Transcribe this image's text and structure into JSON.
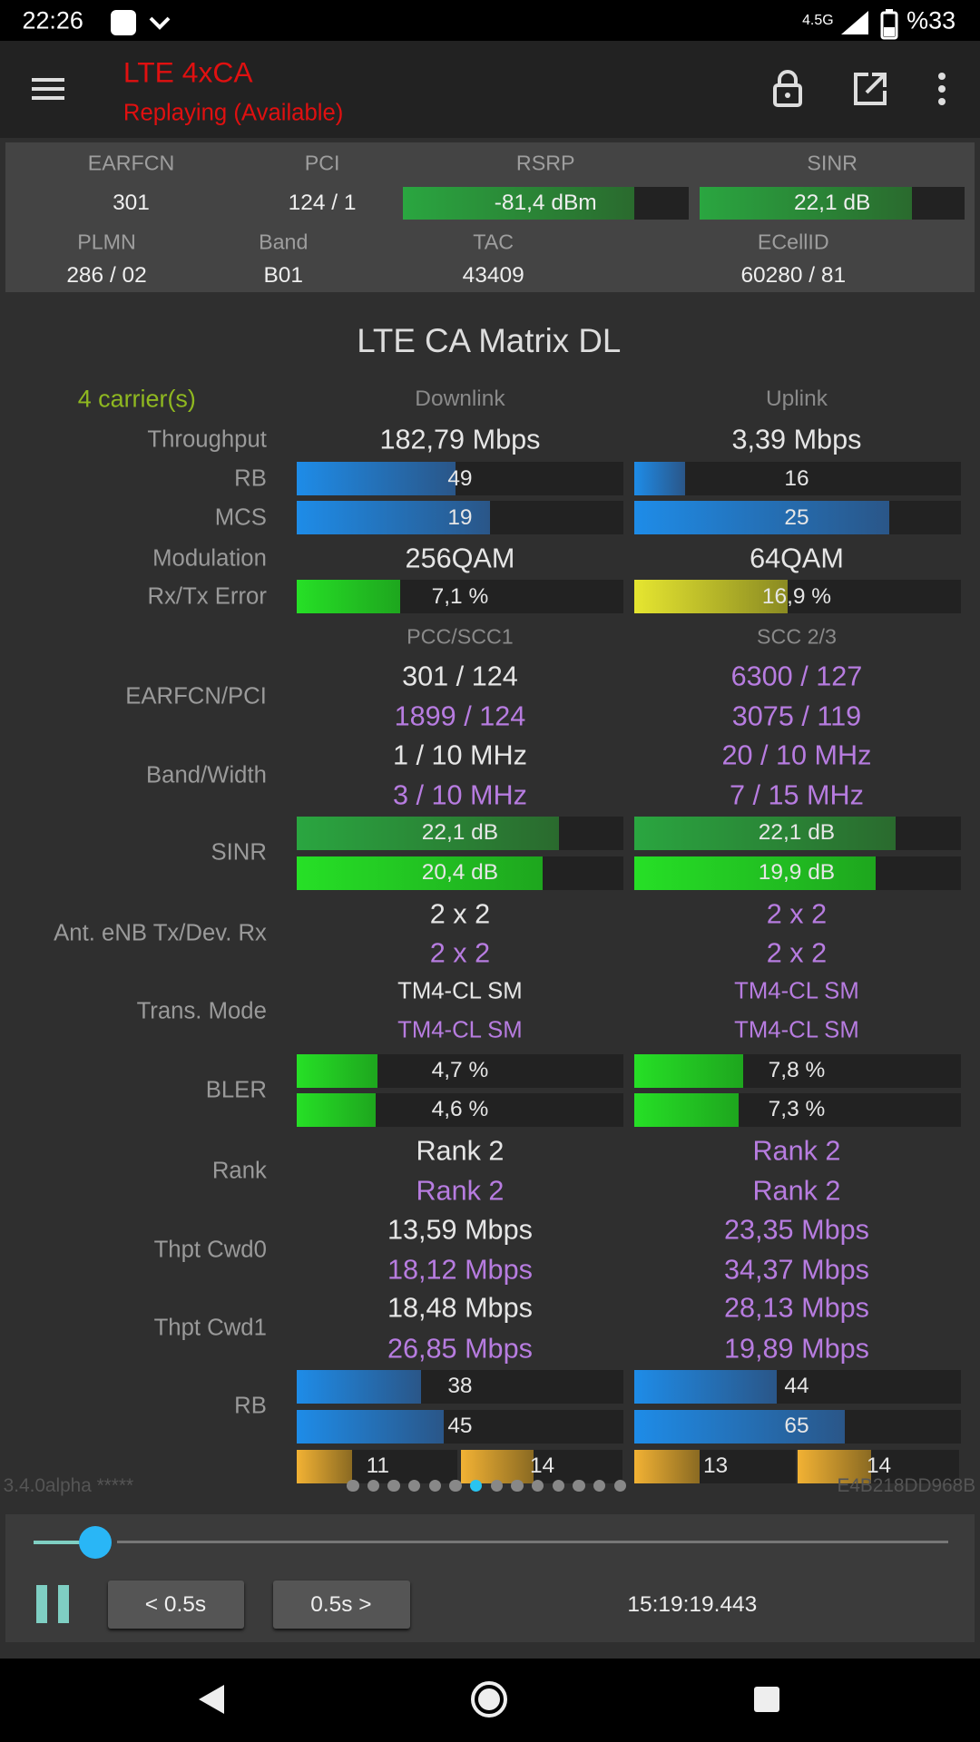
{
  "status_bar": {
    "time": "22:26",
    "network": "4.5G",
    "battery": "%33"
  },
  "app_bar": {
    "title": "LTE 4xCA",
    "subtitle": "Replaying (Available)"
  },
  "cell_info": {
    "headers": [
      "EARFCN",
      "PCI",
      "RSRP",
      "SINR"
    ],
    "values": [
      "301",
      "124 / 1",
      "-81,4 dBm",
      "22,1 dB"
    ],
    "headers2": [
      "PLMN",
      "Band",
      "TAC",
      "ECellID"
    ],
    "values2": [
      "286 / 02",
      "B01",
      "43409",
      "60280 / 81"
    ]
  },
  "matrix": {
    "title": "LTE CA Matrix DL",
    "carriers": "4 carrier(s)",
    "columns": [
      "Downlink",
      "Uplink"
    ],
    "subheaders": [
      "PCC/SCC1",
      "SCC 2/3"
    ],
    "rows": [
      {
        "label": "Throughput",
        "downlink": [
          "182,79 Mbps"
        ],
        "uplink": [
          "3,39 Mbps"
        ]
      },
      {
        "label": "RB",
        "downlink": [
          "49"
        ],
        "uplink": [
          "16"
        ]
      },
      {
        "label": "MCS",
        "downlink": [
          "19"
        ],
        "uplink": [
          "25"
        ]
      },
      {
        "label": "Modulation",
        "downlink": [
          "256QAM"
        ],
        "uplink": [
          "64QAM"
        ]
      },
      {
        "label": "Rx/Tx Error",
        "downlink": [
          "7,1 %"
        ],
        "uplink": [
          "16,9 %"
        ]
      },
      {
        "label": "EARFCN/PCI",
        "downlink": [
          "301 / 124",
          "1899 / 124"
        ],
        "uplink": [
          "6300 / 127",
          "3075 / 119"
        ]
      },
      {
        "label": "Band/Width",
        "downlink": [
          "1 / 10 MHz",
          "3 / 10 MHz"
        ],
        "uplink": [
          "20 / 10 MHz",
          "7 / 15 MHz"
        ]
      },
      {
        "label": "SINR",
        "downlink": [
          "22,1 dB",
          "20,4 dB"
        ],
        "uplink": [
          "22,1 dB",
          "19,9 dB"
        ]
      },
      {
        "label": "Ant. eNB Tx/Dev. Rx",
        "downlink": [
          "2 x 2",
          "2 x 2"
        ],
        "uplink": [
          "2 x 2",
          "2 x 2"
        ]
      },
      {
        "label": "Trans. Mode",
        "downlink": [
          "TM4-CL SM",
          "TM4-CL SM"
        ],
        "uplink": [
          "TM4-CL SM",
          "TM4-CL SM"
        ]
      },
      {
        "label": "BLER",
        "downlink": [
          "4,7 %",
          "4,6 %"
        ],
        "uplink": [
          "7,8 %",
          "7,3 %"
        ]
      },
      {
        "label": "Rank",
        "downlink": [
          "Rank 2",
          "Rank 2"
        ],
        "uplink": [
          "Rank 2",
          "Rank 2"
        ]
      },
      {
        "label": "Thpt Cwd0",
        "downlink": [
          "13,59 Mbps",
          "18,12 Mbps"
        ],
        "uplink": [
          "23,35 Mbps",
          "34,37 Mbps"
        ]
      },
      {
        "label": "Thpt Cwd1",
        "downlink": [
          "18,48 Mbps",
          "26,85 Mbps"
        ],
        "uplink": [
          "28,13 Mbps",
          "19,89 Mbps"
        ]
      },
      {
        "label": "RB",
        "downlink": [
          "38",
          "45"
        ],
        "uplink": [
          "44",
          "65"
        ]
      },
      {
        "downlink": [
          "11",
          "14"
        ],
        "uplink": [
          "13",
          "14"
        ]
      }
    ]
  },
  "footer": {
    "version": "3.4.0alpha *****",
    "device_id": "E4B218DD968B"
  },
  "player": {
    "back_button": "< 0.5s",
    "forward_button": "0.5s >",
    "timestamp": "15:19:19.443"
  }
}
